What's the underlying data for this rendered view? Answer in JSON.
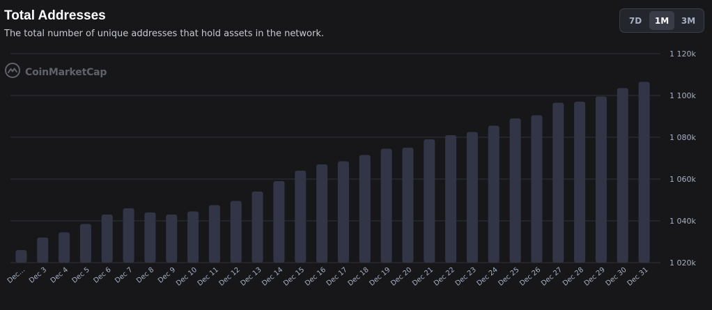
{
  "header": {
    "title": "Total Addresses",
    "subtitle": "The total number of unique addresses that hold assets in the network."
  },
  "range_toggle": {
    "options": [
      "7D",
      "1M",
      "3M"
    ],
    "selected": "1M"
  },
  "watermark": {
    "text": "CoinMarketCap",
    "icon": "coinmarketcap-logo-icon"
  },
  "colors": {
    "background": "#17171a",
    "bar": "#323546",
    "grid": "#2e3038",
    "text_muted": "#a6b0c3"
  },
  "chart_data": {
    "type": "bar",
    "title": "Total Addresses",
    "xlabel": "",
    "ylabel": "",
    "categories": [
      "Dec…",
      "Dec 3",
      "Dec 4",
      "Dec 5",
      "Dec 6",
      "Dec 7",
      "Dec 8",
      "Dec 9",
      "Dec 10",
      "Dec 11",
      "Dec 12",
      "Dec 13",
      "Dec 14",
      "Dec 15",
      "Dec 16",
      "Dec 17",
      "Dec 18",
      "Dec 19",
      "Dec 20",
      "Dec 21",
      "Dec 22",
      "Dec 23",
      "Dec 24",
      "Dec 25",
      "Dec 26",
      "Dec 27",
      "Dec 28",
      "Dec 29",
      "Dec 30",
      "Dec 31"
    ],
    "values": [
      1026000,
      1032000,
      1034500,
      1038500,
      1043000,
      1046000,
      1044000,
      1043000,
      1044500,
      1047500,
      1049500,
      1054000,
      1059000,
      1064000,
      1067000,
      1068500,
      1071500,
      1074500,
      1075000,
      1079000,
      1081000,
      1082500,
      1085500,
      1089000,
      1090500,
      1096500,
      1097000,
      1099500,
      1103500,
      1106500
    ],
    "ylim": [
      1020000,
      1120000
    ],
    "yticks": [
      1020000,
      1040000,
      1060000,
      1080000,
      1100000,
      1120000
    ],
    "ytick_labels": [
      "1 020k",
      "1 040k",
      "1 060k",
      "1 080k",
      "1 100k",
      "1 120k"
    ],
    "grid": true,
    "y_axis_position": "right"
  }
}
